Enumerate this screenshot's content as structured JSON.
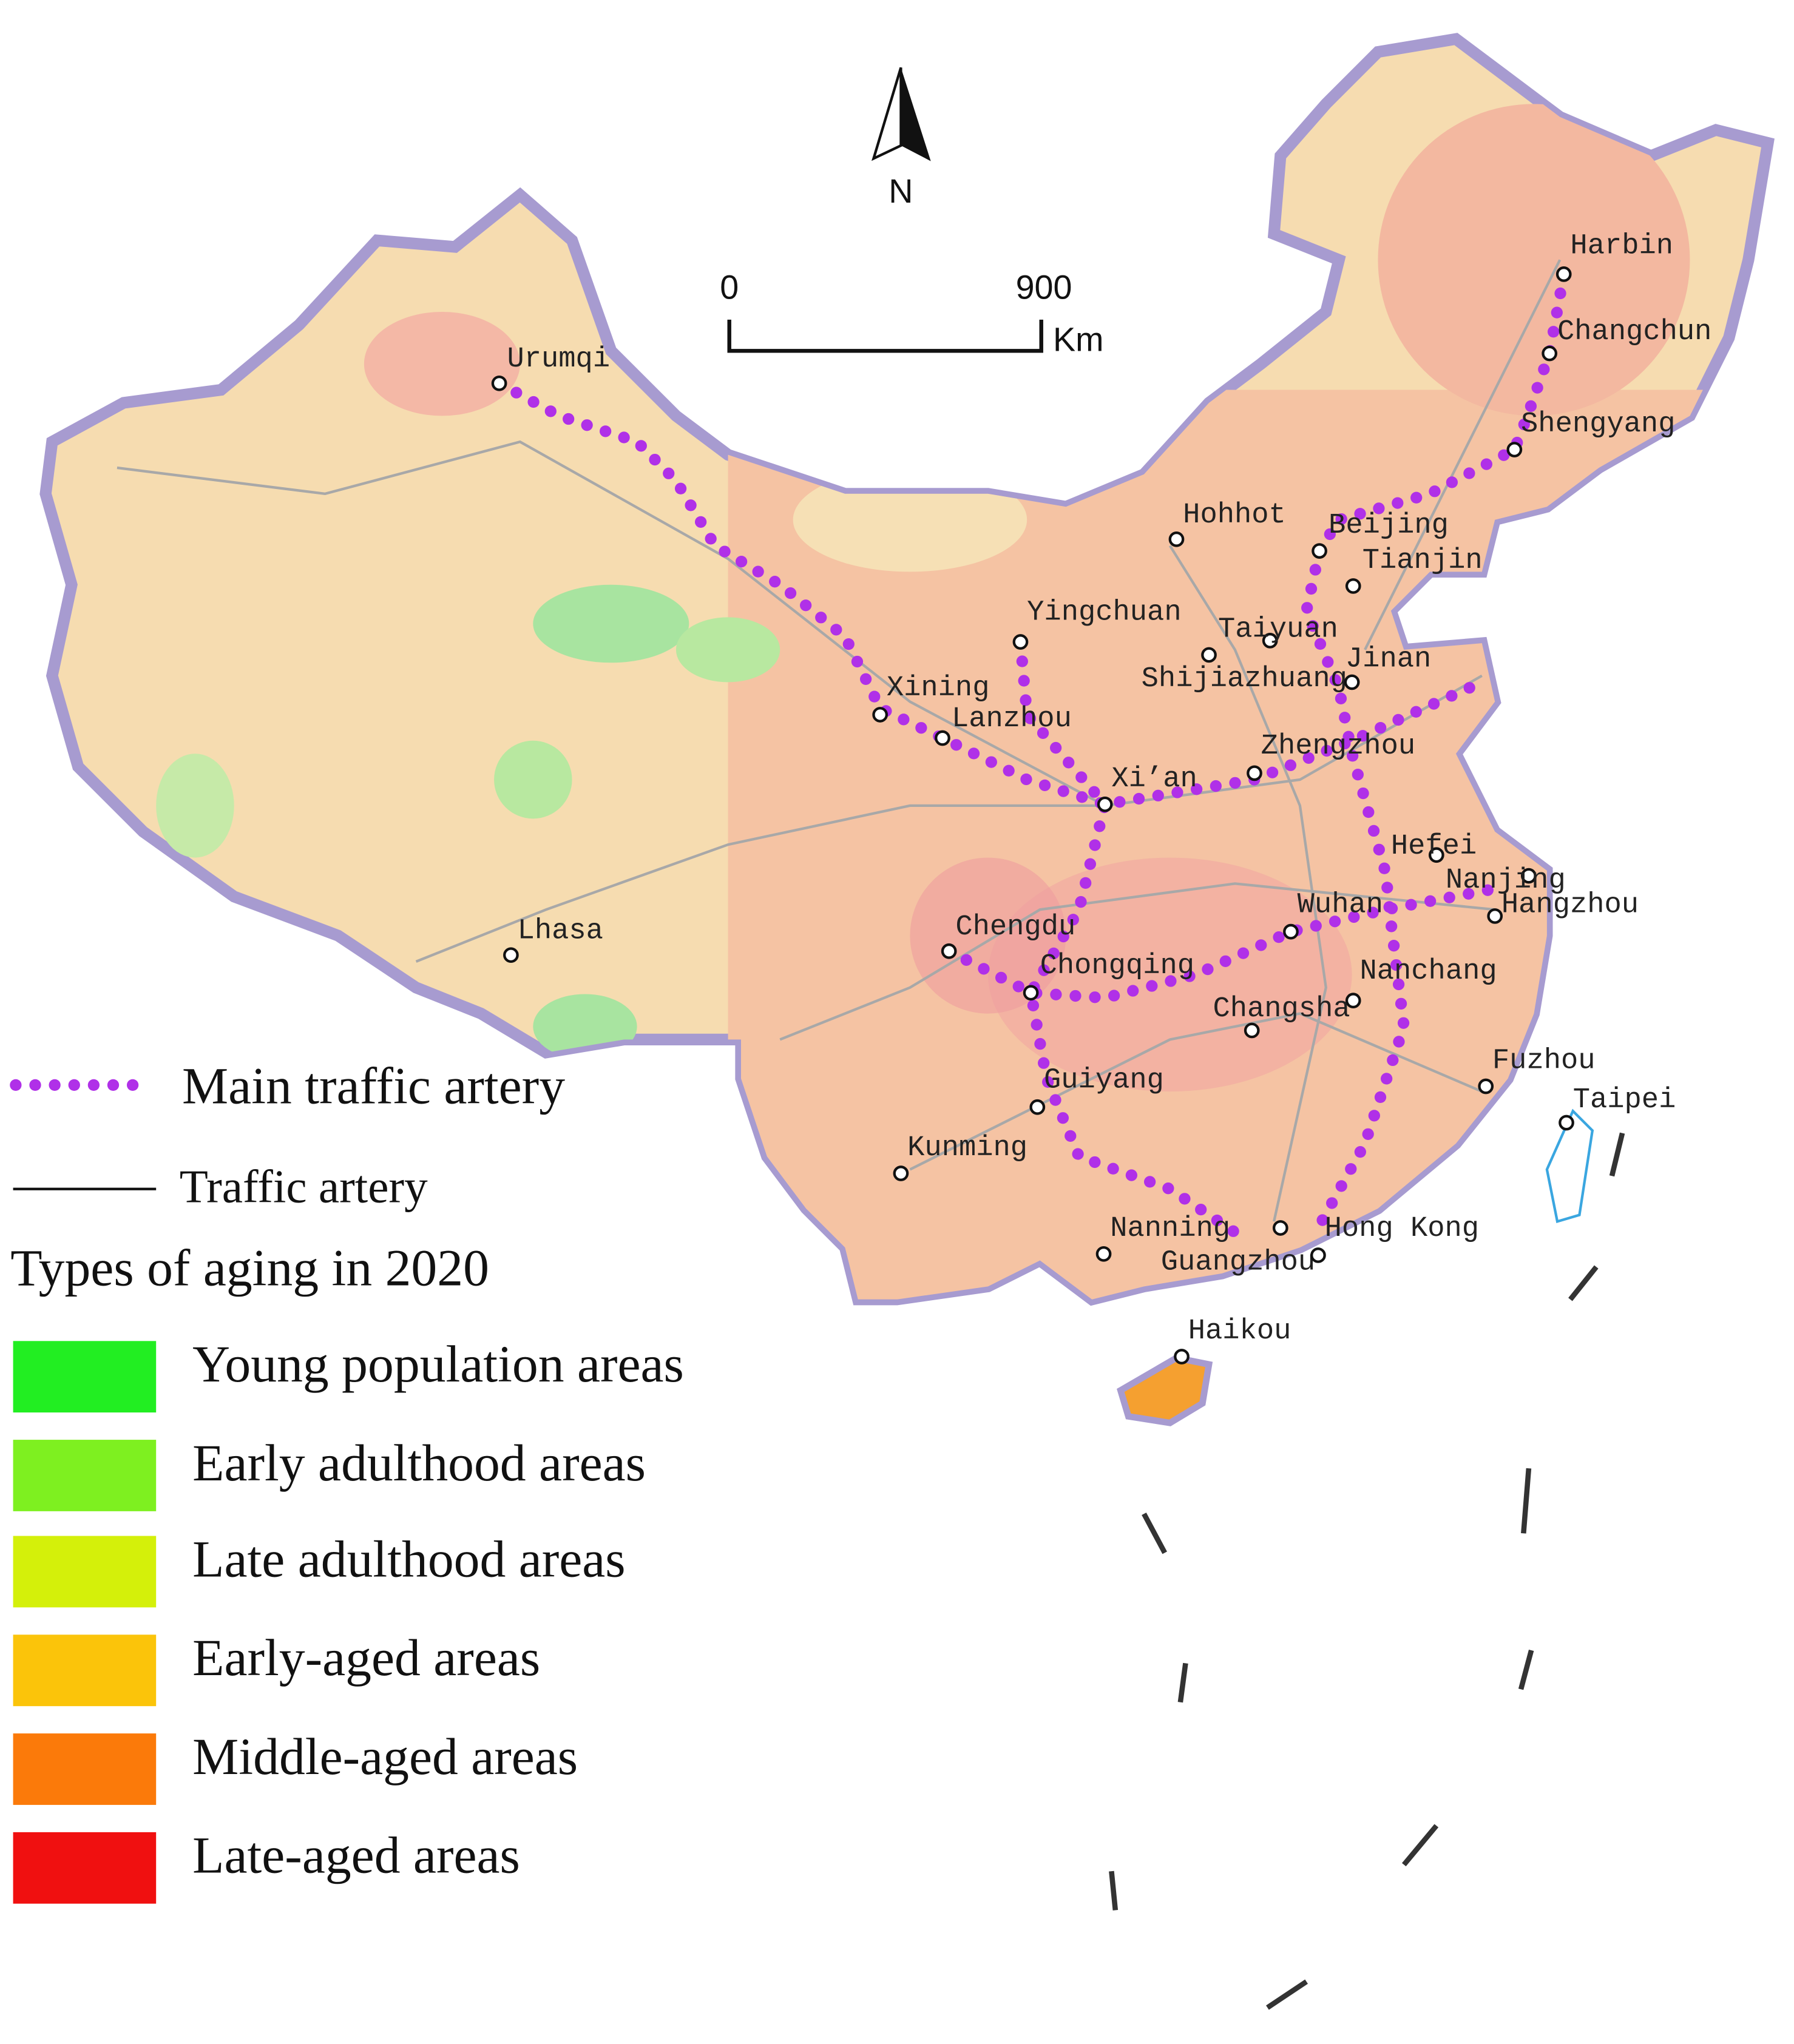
{
  "map": {
    "north_label": "N",
    "scale_bar": {
      "start": "0",
      "end": "900",
      "unit": "Km"
    },
    "cities": [
      "Urumqi",
      "Harbin",
      "Changchun",
      "Shengyang",
      "Beijing",
      "Tianjin",
      "Hohhot",
      "Yingchuan",
      "Taiyuan",
      "Shijiazhuang",
      "Jinan",
      "Xining",
      "Lanzhou",
      "Zhengzhou",
      "Xi’an",
      "Hefei",
      "Nanjing",
      "Hangzhou",
      "Wuhan",
      "Chengdu",
      "Chongqing",
      "Nanchang",
      "Changsha",
      "Lhasa",
      "Fuzhou",
      "Taipei",
      "Guiyang",
      "Kunming",
      "Nanning",
      "Guangzhou",
      "Hong Kong",
      "Haikou"
    ],
    "legend": {
      "main_artery": "Main traffic artery",
      "artery": "Traffic artery",
      "title": "Types of aging in 2020",
      "classes": [
        {
          "label": "Young population areas",
          "color": "#22ee22"
        },
        {
          "label": "Early adulthood areas",
          "color": "#7ef020"
        },
        {
          "label": "Late adulthood areas",
          "color": "#d4f00a"
        },
        {
          "label": "Early-aged areas",
          "color": "#fbc40a"
        },
        {
          "label": "Middle-aged areas",
          "color": "#fb7a0a"
        },
        {
          "label": "Late-aged areas",
          "color": "#f01010"
        }
      ]
    }
  }
}
